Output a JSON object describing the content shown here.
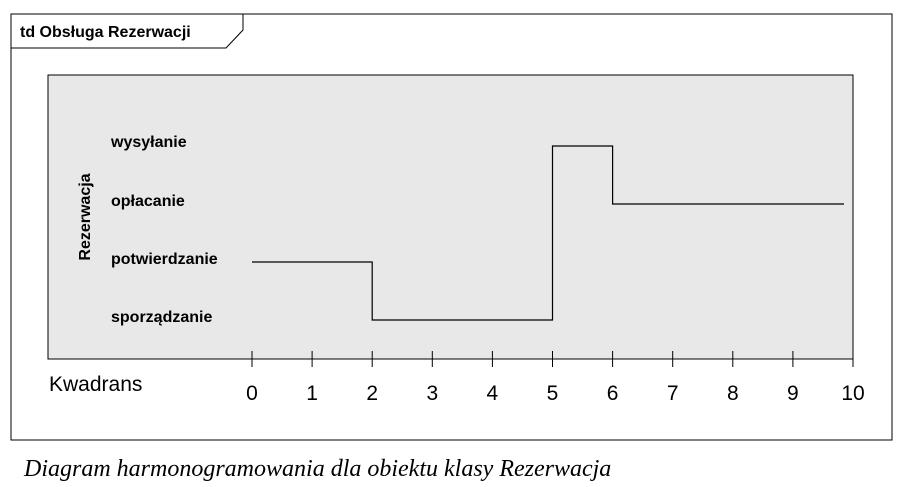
{
  "frame": {
    "title": "td Obsługa Rezerwacji"
  },
  "lifeline": {
    "name": "Rezerwacja"
  },
  "states": [
    "sporządzanie",
    "potwierdzanie",
    "opłacanie",
    "wysyłanie"
  ],
  "axis": {
    "name": "Kwadrans",
    "ticks": [
      "0",
      "1",
      "2",
      "3",
      "4",
      "5",
      "6",
      "7",
      "8",
      "9",
      "10"
    ]
  },
  "timeline": [
    {
      "t": 0,
      "state": "potwierdzanie"
    },
    {
      "t": 2,
      "state": "sporządzanie"
    },
    {
      "t": 5,
      "state": "wysyłanie"
    },
    {
      "t": 6,
      "state": "opłacanie"
    },
    {
      "t": 9.85,
      "state": "opłacanie"
    }
  ],
  "caption": "Diagram harmonogramowania dla obiektu klasy Rezerwacja",
  "colors": {
    "panel": "#e8e8e8",
    "line": "#000000"
  }
}
